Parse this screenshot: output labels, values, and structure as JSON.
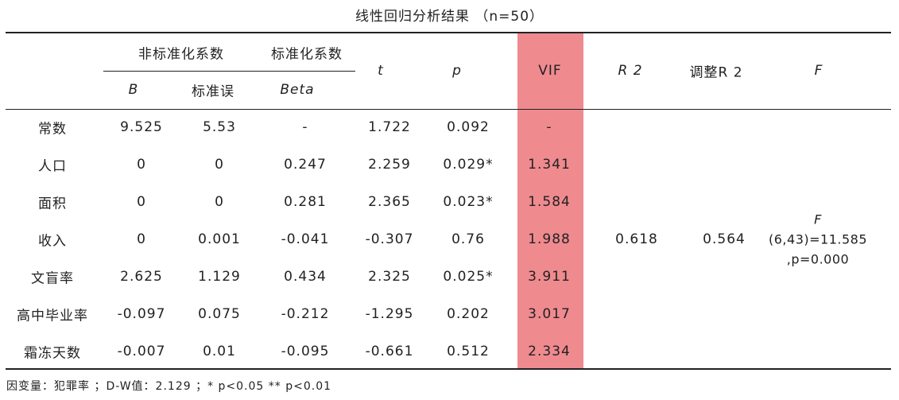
{
  "title": {
    "text": "线性回归分析结果",
    "n_part": "（n=50）"
  },
  "headers": {
    "unstd_group": "非标准化系数",
    "std_group": "标准化系数",
    "B": "B",
    "se": "标准误",
    "beta": "Beta",
    "t": "t",
    "p": "p",
    "vif": "VIF",
    "r2": "R 2",
    "adj_r2": "调整R 2",
    "f": "F"
  },
  "rows": [
    {
      "name": "常数",
      "B": "9.525",
      "se": "5.53",
      "beta": "-",
      "t": "1.722",
      "p": "0.092",
      "vif": "-"
    },
    {
      "name": "人口",
      "B": "0",
      "se": "0",
      "beta": "0.247",
      "t": "2.259",
      "p": "0.029*",
      "vif": "1.341"
    },
    {
      "name": "面积",
      "B": "0",
      "se": "0",
      "beta": "0.281",
      "t": "2.365",
      "p": "0.023*",
      "vif": "1.584"
    },
    {
      "name": "收入",
      "B": "0",
      "se": "0.001",
      "beta": "-0.041",
      "t": "-0.307",
      "p": "0.76",
      "vif": "1.988"
    },
    {
      "name": "文盲率",
      "B": "2.625",
      "se": "1.129",
      "beta": "0.434",
      "t": "2.325",
      "p": "0.025*",
      "vif": "3.911"
    },
    {
      "name": "高中毕业率",
      "B": "-0.097",
      "se": "0.075",
      "beta": "-0.212",
      "t": "-1.295",
      "p": "0.202",
      "vif": "3.017"
    },
    {
      "name": "霜冻天数",
      "B": "-0.007",
      "se": "0.01",
      "beta": "-0.095",
      "t": "-0.661",
      "p": "0.512",
      "vif": "2.334"
    }
  ],
  "summary": {
    "r2": "0.618",
    "adj_r2": "0.564",
    "f_label": "F",
    "f_value": "(6,43)=11.585",
    "f_p": ",p=0.000"
  },
  "note": "因变量：犯罪率 ；D-W值：2.129 ；* p<0.05 ** p<0.01",
  "colors": {
    "vif_highlight": "#ef8a8f"
  }
}
